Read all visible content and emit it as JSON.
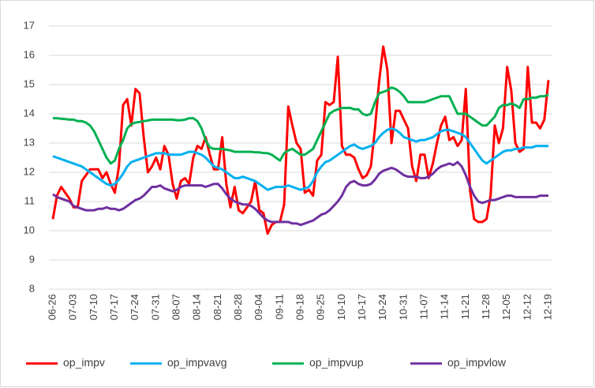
{
  "chart_data": {
    "type": "line",
    "categories": [
      "06-26",
      null,
      null,
      null,
      null,
      "07-03",
      null,
      null,
      null,
      null,
      "07-10",
      null,
      null,
      null,
      null,
      "07-17",
      null,
      null,
      null,
      null,
      "07-24",
      null,
      null,
      null,
      null,
      "07-31",
      null,
      null,
      null,
      null,
      "08-07",
      null,
      null,
      null,
      null,
      "08-14",
      null,
      null,
      null,
      null,
      "08-21",
      null,
      null,
      null,
      null,
      "08-28",
      null,
      null,
      null,
      null,
      "09-04",
      null,
      null,
      null,
      null,
      "09-11",
      null,
      null,
      null,
      null,
      "09-18",
      null,
      null,
      null,
      null,
      "09-25",
      null,
      null,
      null,
      null,
      "10-10",
      null,
      null,
      null,
      null,
      "10-17",
      null,
      null,
      null,
      null,
      "10-24",
      null,
      null,
      null,
      null,
      "10-31",
      null,
      null,
      null,
      null,
      "11-07",
      null,
      null,
      null,
      null,
      "11-14",
      null,
      null,
      null,
      null,
      "11-21",
      null,
      null,
      null,
      null,
      "11-28",
      null,
      null,
      null,
      null,
      "12-05",
      null,
      null,
      null,
      null,
      "12-12",
      null,
      null,
      null,
      null,
      "12-19"
    ],
    "series": [
      {
        "name": "op_impv",
        "color": "#ff0000",
        "values": [
          10.4,
          11.2,
          11.5,
          11.3,
          11.1,
          10.8,
          10.8,
          11.7,
          11.9,
          12.1,
          12.1,
          12.1,
          11.8,
          12.0,
          11.6,
          11.3,
          12.2,
          14.3,
          14.5,
          13.6,
          14.85,
          14.7,
          13.2,
          12.0,
          12.2,
          12.5,
          12.1,
          12.9,
          12.6,
          11.6,
          11.1,
          11.7,
          11.8,
          11.6,
          12.5,
          12.9,
          12.8,
          13.2,
          12.6,
          12.1,
          12.1,
          13.2,
          11.6,
          10.8,
          11.5,
          10.7,
          10.6,
          10.8,
          11.0,
          11.7,
          10.7,
          10.6,
          9.9,
          10.2,
          10.3,
          10.3,
          10.9,
          14.25,
          13.6,
          13.0,
          12.8,
          11.3,
          11.4,
          11.2,
          12.4,
          12.6,
          14.4,
          14.3,
          14.4,
          15.95,
          12.9,
          12.6,
          12.6,
          12.5,
          12.1,
          11.8,
          11.9,
          12.2,
          13.5,
          15.1,
          16.3,
          15.5,
          13.0,
          14.1,
          14.1,
          13.8,
          13.5,
          12.2,
          11.7,
          12.6,
          12.6,
          11.8,
          12.3,
          13.0,
          13.6,
          13.9,
          13.1,
          13.2,
          12.9,
          13.1,
          14.85,
          11.4,
          10.4,
          10.3,
          10.3,
          10.4,
          11.2,
          13.6,
          13.0,
          13.5,
          15.6,
          14.8,
          13.0,
          12.7,
          12.8,
          15.6,
          13.7,
          13.7,
          13.5,
          13.8,
          15.15
        ]
      },
      {
        "name": "op_impvavg",
        "color": "#00b0f0",
        "values": [
          12.55,
          12.5,
          12.45,
          12.4,
          12.35,
          12.3,
          12.25,
          12.2,
          12.1,
          12.0,
          11.9,
          11.8,
          11.7,
          11.6,
          11.55,
          11.6,
          11.75,
          11.95,
          12.2,
          12.35,
          12.4,
          12.45,
          12.5,
          12.55,
          12.6,
          12.65,
          12.65,
          12.65,
          12.6,
          12.6,
          12.6,
          12.6,
          12.65,
          12.7,
          12.7,
          12.65,
          12.6,
          12.5,
          12.35,
          12.2,
          12.15,
          12.1,
          12.0,
          11.9,
          11.8,
          11.8,
          11.85,
          11.8,
          11.75,
          11.7,
          11.6,
          11.5,
          11.4,
          11.45,
          11.5,
          11.5,
          11.5,
          11.55,
          11.5,
          11.45,
          11.4,
          11.45,
          11.5,
          11.7,
          12.0,
          12.2,
          12.35,
          12.4,
          12.5,
          12.6,
          12.7,
          12.8,
          12.9,
          12.95,
          12.85,
          12.8,
          12.85,
          12.9,
          13.0,
          13.2,
          13.35,
          13.45,
          13.5,
          13.45,
          13.35,
          13.2,
          13.15,
          13.1,
          13.05,
          13.1,
          13.1,
          13.15,
          13.2,
          13.3,
          13.4,
          13.45,
          13.45,
          13.4,
          13.35,
          13.3,
          13.2,
          13.0,
          12.8,
          12.6,
          12.4,
          12.3,
          12.4,
          12.5,
          12.6,
          12.7,
          12.75,
          12.75,
          12.8,
          12.8,
          12.85,
          12.85,
          12.85,
          12.9,
          12.9,
          12.9,
          12.9
        ]
      },
      {
        "name": "op_impvup",
        "color": "#00b050",
        "values": [
          13.85,
          13.85,
          13.83,
          13.82,
          13.8,
          13.8,
          13.75,
          13.75,
          13.7,
          13.6,
          13.4,
          13.1,
          12.8,
          12.5,
          12.3,
          12.4,
          12.8,
          13.1,
          13.5,
          13.65,
          13.7,
          13.72,
          13.75,
          13.77,
          13.8,
          13.8,
          13.8,
          13.8,
          13.8,
          13.8,
          13.78,
          13.78,
          13.8,
          13.85,
          13.85,
          13.75,
          13.5,
          13.1,
          12.85,
          12.8,
          12.8,
          12.8,
          12.77,
          12.75,
          12.7,
          12.7,
          12.7,
          12.7,
          12.7,
          12.68,
          12.68,
          12.66,
          12.65,
          12.6,
          12.5,
          12.4,
          12.65,
          12.75,
          12.8,
          12.7,
          12.6,
          12.6,
          12.7,
          12.8,
          13.1,
          13.4,
          13.7,
          14.0,
          14.1,
          14.15,
          14.2,
          14.2,
          14.2,
          14.15,
          14.15,
          14.0,
          13.95,
          14.0,
          14.4,
          14.7,
          14.75,
          14.8,
          14.9,
          14.85,
          14.75,
          14.6,
          14.4,
          14.4,
          14.4,
          14.4,
          14.4,
          14.45,
          14.5,
          14.55,
          14.6,
          14.6,
          14.6,
          14.3,
          14.0,
          14.0,
          14.0,
          13.9,
          13.8,
          13.7,
          13.6,
          13.6,
          13.75,
          13.9,
          14.2,
          14.3,
          14.3,
          14.35,
          14.3,
          14.2,
          14.5,
          14.5,
          14.55,
          14.55,
          14.6,
          14.6,
          14.65
        ]
      },
      {
        "name": "op_impvlow",
        "color": "#7030a0",
        "values": [
          11.25,
          11.15,
          11.1,
          11.05,
          11.0,
          10.85,
          10.8,
          10.75,
          10.7,
          10.7,
          10.7,
          10.75,
          10.75,
          10.8,
          10.75,
          10.75,
          10.7,
          10.75,
          10.85,
          10.95,
          11.05,
          11.1,
          11.2,
          11.35,
          11.5,
          11.5,
          11.55,
          11.45,
          11.4,
          11.35,
          11.4,
          11.5,
          11.55,
          11.55,
          11.55,
          11.55,
          11.55,
          11.5,
          11.55,
          11.6,
          11.6,
          11.45,
          11.25,
          11.1,
          11.0,
          10.95,
          10.9,
          10.9,
          10.85,
          10.75,
          10.6,
          10.45,
          10.35,
          10.3,
          10.3,
          10.3,
          10.3,
          10.3,
          10.25,
          10.25,
          10.2,
          10.25,
          10.3,
          10.35,
          10.45,
          10.55,
          10.6,
          10.7,
          10.85,
          11.0,
          11.2,
          11.5,
          11.65,
          11.7,
          11.6,
          11.55,
          11.55,
          11.6,
          11.75,
          11.95,
          12.05,
          12.1,
          12.15,
          12.1,
          12.0,
          11.9,
          11.85,
          11.85,
          11.85,
          11.8,
          11.8,
          11.85,
          11.95,
          12.1,
          12.2,
          12.25,
          12.3,
          12.25,
          12.35,
          12.2,
          11.9,
          11.5,
          11.2,
          11.0,
          10.95,
          11.0,
          11.05,
          11.05,
          11.1,
          11.15,
          11.2,
          11.2,
          11.15,
          11.15,
          11.15,
          11.15,
          11.15,
          11.15,
          11.2,
          11.2,
          11.2
        ]
      }
    ],
    "ylim": [
      8,
      17
    ],
    "yticks": [
      8,
      9,
      10,
      11,
      12,
      13,
      14,
      15,
      16,
      17
    ],
    "grid": true,
    "legend": "bottom"
  }
}
